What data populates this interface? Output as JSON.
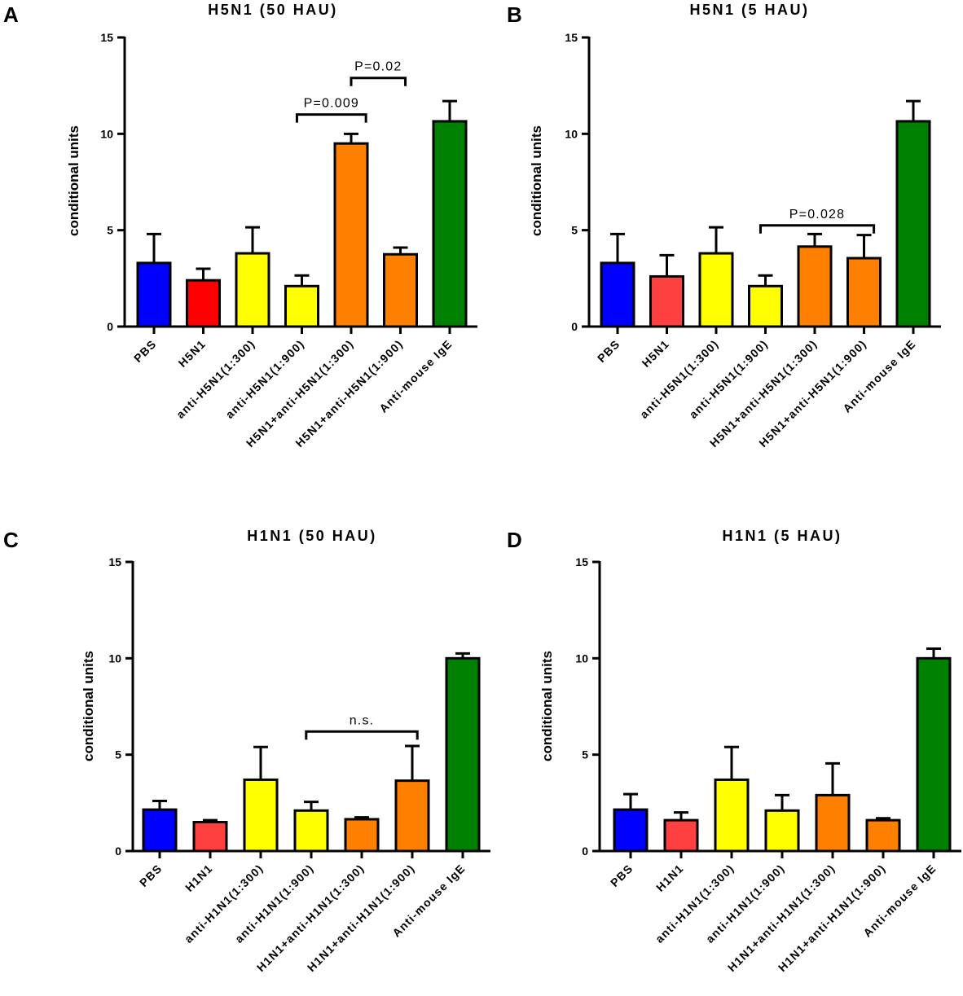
{
  "chart_data": [
    {
      "panel": "A",
      "type": "bar",
      "title": "H5N1 (50 HAU)",
      "ylabel": "conditional units",
      "xlabel": "",
      "ylim": [
        0,
        15
      ],
      "yticks": [
        "0",
        "5",
        "10",
        "15"
      ],
      "categories": [
        "PBS",
        "H5N1",
        "anti-H5N1(1:300)",
        "anti-H5N1(1:900)",
        "H5N1+anti-H5N1(1:300)",
        "H5N1+anti-H5N1(1:900)",
        "Anti-mouse IgE"
      ],
      "values": [
        3.3,
        2.4,
        3.8,
        2.1,
        9.5,
        3.75,
        10.65
      ],
      "errors": [
        1.5,
        0.6,
        1.35,
        0.55,
        0.5,
        0.35,
        1.05
      ],
      "colors": [
        "#0000ff",
        "#ff0000",
        "#ffff00",
        "#ffff00",
        "#ff8000",
        "#ff8000",
        "#008000"
      ],
      "annotations": [
        {
          "text": "P=0.009",
          "from": 2.9,
          "to": 4.3,
          "y": 11.0
        },
        {
          "text": "P=0.02",
          "from": 4.0,
          "to": 5.1,
          "y": 12.9
        }
      ]
    },
    {
      "panel": "B",
      "type": "bar",
      "title": "H5N1 (5 HAU)",
      "ylabel": "conditional units",
      "xlabel": "",
      "ylim": [
        0,
        15
      ],
      "yticks": [
        "0",
        "5",
        "10",
        "15"
      ],
      "categories": [
        "PBS",
        "H5N1",
        "anti-H5N1(1:300)",
        "anti-H5N1(1:900)",
        "H5N1+anti-H5N1(1:300)",
        "H5N1+anti-H5N1(1:900)",
        "Anti-mouse IgE"
      ],
      "values": [
        3.3,
        2.6,
        3.8,
        2.1,
        4.15,
        3.55,
        10.65
      ],
      "errors": [
        1.5,
        1.1,
        1.35,
        0.55,
        0.65,
        1.2,
        1.05
      ],
      "colors": [
        "#0000ff",
        "#ff4040",
        "#ffff00",
        "#ffff00",
        "#ff8000",
        "#ff8000",
        "#008000"
      ],
      "annotations": [
        {
          "text": "P=0.028",
          "from": 2.9,
          "to": 5.2,
          "y": 5.25
        }
      ]
    },
    {
      "panel": "C",
      "type": "bar",
      "title": "H1N1 (50 HAU)",
      "ylabel": "conditional units",
      "xlabel": "",
      "ylim": [
        0,
        15
      ],
      "yticks": [
        "0",
        "5",
        "10",
        "15"
      ],
      "categories": [
        "PBS",
        "H1N1",
        "anti-H1N1(1:300)",
        "anti-H1N1(1:900)",
        "H1N1+anti-H1N1(1:300)",
        "H1N1+anti-H1N1(1:900)",
        "Anti-mouse IgE"
      ],
      "values": [
        2.15,
        1.5,
        3.7,
        2.1,
        1.65,
        3.65,
        10.0
      ],
      "errors": [
        0.45,
        0.1,
        1.7,
        0.45,
        0.1,
        1.8,
        0.25
      ],
      "colors": [
        "#0000ff",
        "#ff4040",
        "#ffff00",
        "#ffff00",
        "#ff8000",
        "#ff8000",
        "#008000"
      ],
      "annotations": [
        {
          "text": "n.s.",
          "from": 2.9,
          "to": 5.1,
          "y": 6.2
        }
      ]
    },
    {
      "panel": "D",
      "type": "bar",
      "title": "H1N1 (5 HAU)",
      "ylabel": "conditional units",
      "xlabel": "",
      "ylim": [
        0,
        15
      ],
      "yticks": [
        "0",
        "5",
        "10",
        "15"
      ],
      "categories": [
        "PBS",
        "H1N1",
        "anti-H1N1(1:300)",
        "anti-H1N1(1:900)",
        "H1N1+anti-H1N1(1:300)",
        "H1N1+anti-H1N1(1:900)",
        "Anti-mouse IgE"
      ],
      "values": [
        2.15,
        1.6,
        3.7,
        2.1,
        2.9,
        1.6,
        10.0
      ],
      "errors": [
        0.8,
        0.4,
        1.7,
        0.8,
        1.65,
        0.1,
        0.5
      ],
      "colors": [
        "#0000ff",
        "#ff4040",
        "#ffff00",
        "#ffff00",
        "#ff8000",
        "#ff8000",
        "#008000"
      ],
      "annotations": []
    }
  ]
}
